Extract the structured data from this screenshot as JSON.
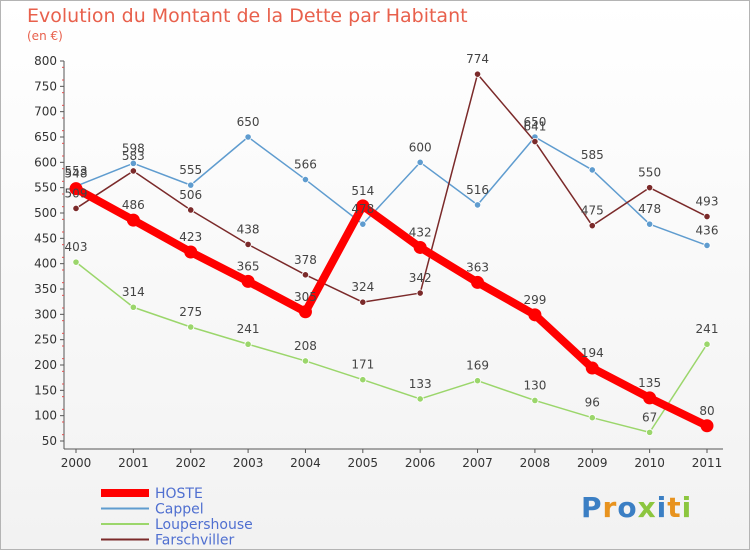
{
  "header": {
    "title": "Evolution du Montant de la Dette par Habitant",
    "unit": "(en €)"
  },
  "logo": {
    "text": "Proxiti",
    "letter_colors": [
      "#3b7fc4",
      "#e8931f",
      "#3b7fc4",
      "#8cc63f",
      "#3b7fc4",
      "#e8931f",
      "#8cc63f"
    ]
  },
  "chart_data": {
    "type": "line",
    "title": "Evolution du Montant de la Dette par Habitant",
    "ylabel": "(en €)",
    "xlabel": "",
    "x": [
      "2000",
      "2001",
      "2002",
      "2003",
      "2004",
      "2005",
      "2006",
      "2007",
      "2008",
      "2009",
      "2010",
      "2011"
    ],
    "ylim": [
      50,
      800
    ],
    "yticks": [
      50,
      100,
      150,
      200,
      250,
      300,
      350,
      400,
      450,
      500,
      550,
      600,
      650,
      700,
      750,
      800
    ],
    "grid": false,
    "legend_position": "bottom-left",
    "series": [
      {
        "name": "HOSTE",
        "color": "#ff0000",
        "highlight": true,
        "values": [
          548,
          486,
          423,
          365,
          305,
          514,
          432,
          363,
          299,
          194,
          135,
          80
        ],
        "labels": [
          "548",
          "486",
          "423",
          "365",
          "305",
          "514",
          "432",
          "363",
          "299",
          "194",
          "135",
          "80"
        ]
      },
      {
        "name": "Cappel",
        "color": "#5f9ccf",
        "highlight": false,
        "values": [
          553,
          598,
          555,
          650,
          566,
          478,
          600,
          516,
          650,
          585,
          478,
          436
        ],
        "labels": [
          "553",
          "598",
          "555",
          "650",
          "566",
          "478",
          "600",
          "516",
          "650",
          "585",
          "478",
          "436"
        ]
      },
      {
        "name": "Loupershouse",
        "color": "#9bd66b",
        "highlight": false,
        "values": [
          403,
          314,
          275,
          241,
          208,
          171,
          133,
          169,
          130,
          96,
          67,
          241
        ],
        "labels": [
          "403",
          "314",
          "275",
          "241",
          "208",
          "171",
          "133",
          "169",
          "130",
          "96",
          "67",
          "241"
        ]
      },
      {
        "name": "Farschviller",
        "color": "#7b2a2a",
        "highlight": false,
        "values": [
          509,
          583,
          506,
          438,
          378,
          324,
          342,
          774,
          641,
          475,
          550,
          493
        ],
        "labels": [
          "509",
          "583",
          "506",
          "438",
          "378",
          "324",
          "342",
          "774",
          "641",
          "475",
          "550",
          "493"
        ]
      }
    ]
  }
}
